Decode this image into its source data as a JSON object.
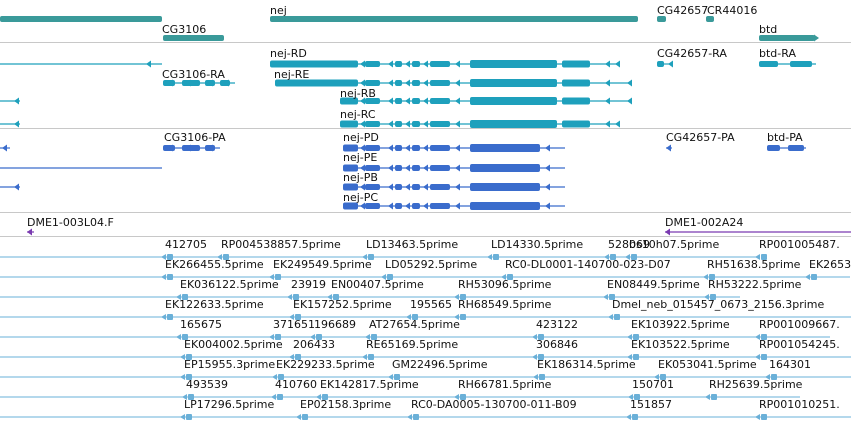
{
  "colors": {
    "gene": "#3a9a9a",
    "mrna": "#1ea0bc",
    "protein": "#3a6ccc",
    "clone": "#7a3ab0",
    "est": "#6ab0d8",
    "separator": "#c8c8c8"
  },
  "genes": [
    {
      "label": "nej"
    },
    {
      "label": "CG3106"
    },
    {
      "label": "CG42657"
    },
    {
      "label": "CR44016"
    },
    {
      "label": "btd"
    }
  ],
  "transcripts": [
    {
      "label": "nej-RD"
    },
    {
      "label": "nej-RE"
    },
    {
      "label": "nej-RB"
    },
    {
      "label": "nej-RC"
    },
    {
      "label": "CG3106-RA"
    },
    {
      "label": "CG42657-RA"
    },
    {
      "label": "btd-RA"
    }
  ],
  "proteins": [
    {
      "label": "CG3106-PA"
    },
    {
      "label": "nej-PD"
    },
    {
      "label": "nej-PE"
    },
    {
      "label": "nej-PB"
    },
    {
      "label": "nej-PC"
    },
    {
      "label": "CG42657-PA"
    },
    {
      "label": "btd-PA"
    }
  ],
  "clones": [
    {
      "label": "DME1-003L04.F"
    },
    {
      "label": "DME1-002A24"
    }
  ],
  "est_rows": [
    [
      "412705",
      "RP004538857.5prime",
      "LD13463.5prime",
      "LD14330.5prime",
      "528069",
      "bs10h07.5prime",
      "RP001005487."
    ],
    [
      "EK266455.5prime",
      "EK249549.5prime",
      "LD05292.5prime",
      "RC0-DL0001-140700-023-D07",
      "RH51638.5prime",
      "EK2653"
    ],
    [
      "EK036122.5prime",
      "23919",
      "EN00407.5prime",
      "RH53096.5prime",
      "EN08449.5prime",
      "RH53222.5prime"
    ],
    [
      "EK122633.5prime",
      "EK157252.5prime",
      "195565",
      "RH68549.5prime",
      "Dmel_neb_015457_0673_2156.3prime"
    ],
    [
      "165675",
      "371651",
      "196689",
      "AT27654.5prime",
      "423122",
      "EK103922.5prime",
      "RP001009667."
    ],
    [
      "EK004002.5prime",
      "206433",
      "RE65169.5prime",
      "306846",
      "EK103522.5prime",
      "RP001054245."
    ],
    [
      "EP15955.3prime",
      "EK229233.5prime",
      "GM22496.5prime",
      "EK186314.5prime",
      "EK053041.5prime",
      "164301"
    ],
    [
      "493539",
      "410760",
      "EK142817.5prime",
      "RH66781.5prime",
      "150701",
      "RH25639.5prime"
    ],
    [
      "LP17296.5prime",
      "EP02158.3prime",
      "RC0-DA0005-130700-011-B09",
      "151857",
      "RP001010251."
    ]
  ]
}
